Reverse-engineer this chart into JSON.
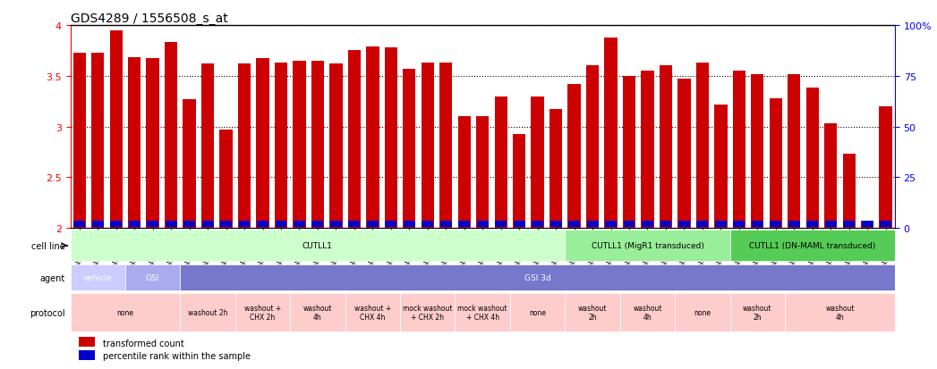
{
  "title": "GDS4289 / 1556508_s_at",
  "samples": [
    "GSM731500",
    "GSM731501",
    "GSM731502",
    "GSM731503",
    "GSM731504",
    "GSM731505",
    "GSM731518",
    "GSM731519",
    "GSM731520",
    "GSM731506",
    "GSM731507",
    "GSM731508",
    "GSM731509",
    "GSM731510",
    "GSM731511",
    "GSM731512",
    "GSM731513",
    "GSM731514",
    "GSM731515",
    "GSM731516",
    "GSM731517",
    "GSM731521",
    "GSM731522",
    "GSM731523",
    "GSM731524",
    "GSM731525",
    "GSM731526",
    "GSM731527",
    "GSM731528",
    "GSM731529",
    "GSM731531",
    "GSM731532",
    "GSM731533",
    "GSM731534",
    "GSM731535",
    "GSM731536",
    "GSM731537",
    "GSM731538",
    "GSM731539",
    "GSM731540",
    "GSM731541",
    "GSM731542",
    "GSM731543",
    "GSM731544",
    "GSM731545"
  ],
  "red_values": [
    3.73,
    3.73,
    3.95,
    3.68,
    3.67,
    3.83,
    3.27,
    3.62,
    2.97,
    3.62,
    3.67,
    3.63,
    3.65,
    3.65,
    3.62,
    3.75,
    3.79,
    3.78,
    3.57,
    3.63,
    3.63,
    3.1,
    3.1,
    3.3,
    2.93,
    3.3,
    3.17,
    3.42,
    3.6,
    3.88,
    3.5,
    3.55,
    3.6,
    3.47,
    3.63,
    3.22,
    3.55,
    3.52,
    3.28,
    3.52,
    3.38,
    3.03,
    2.73,
    2.07,
    3.2
  ],
  "blue_values": [
    0.1,
    0.09,
    0.06,
    0.16,
    0.08,
    0.14,
    0.08,
    0.08,
    0.1,
    0.08,
    0.08,
    0.14,
    0.09,
    0.08,
    0.1,
    0.1,
    0.12,
    0.12,
    0.14,
    0.1,
    0.14,
    0.18,
    0.14,
    0.16,
    0.1,
    0.08,
    0.14,
    0.1,
    0.22,
    0.12,
    0.1,
    0.1,
    0.1,
    0.08,
    0.12,
    0.1,
    0.1,
    0.12,
    0.14,
    0.1,
    0.15,
    0.08,
    0.08,
    0.18,
    0.1
  ],
  "ymin": 2.0,
  "ymax": 4.0,
  "bar_color": "#cc0000",
  "blue_color": "#0000cc",
  "cell_line_regions": [
    {
      "label": "CUTLL1",
      "start": 0,
      "end": 27,
      "color": "#ccffcc"
    },
    {
      "label": "CUTLL1 (MigR1 transduced)",
      "start": 27,
      "end": 36,
      "color": "#99ee99"
    },
    {
      "label": "CUTLL1 (DN-MAML transduced)",
      "start": 36,
      "end": 45,
      "color": "#55cc55"
    }
  ],
  "agent_regions": [
    {
      "label": "vehicle",
      "start": 0,
      "end": 3,
      "color": "#ccccff"
    },
    {
      "label": "GSI",
      "start": 3,
      "end": 6,
      "color": "#aaaaee"
    },
    {
      "label": "GSI 3d",
      "start": 6,
      "end": 45,
      "color": "#7777cc"
    }
  ],
  "protocol_regions": [
    {
      "label": "none",
      "start": 0,
      "end": 6,
      "color": "#ffcccc"
    },
    {
      "label": "washout 2h",
      "start": 6,
      "end": 9,
      "color": "#ffcccc"
    },
    {
      "label": "washout +\nCHX 2h",
      "start": 9,
      "end": 12,
      "color": "#ffcccc"
    },
    {
      "label": "washout\n4h",
      "start": 12,
      "end": 15,
      "color": "#ffcccc"
    },
    {
      "label": "washout +\nCHX 4h",
      "start": 15,
      "end": 18,
      "color": "#ffcccc"
    },
    {
      "label": "mock washout\n+ CHX 2h",
      "start": 18,
      "end": 21,
      "color": "#ffcccc"
    },
    {
      "label": "mock washout\n+ CHX 4h",
      "start": 21,
      "end": 24,
      "color": "#ffcccc"
    },
    {
      "label": "none",
      "start": 24,
      "end": 27,
      "color": "#ffcccc"
    },
    {
      "label": "washout\n2h",
      "start": 27,
      "end": 30,
      "color": "#ffcccc"
    },
    {
      "label": "washout\n4h",
      "start": 30,
      "end": 33,
      "color": "#ffcccc"
    },
    {
      "label": "none",
      "start": 33,
      "end": 36,
      "color": "#ffcccc"
    },
    {
      "label": "washout\n2h",
      "start": 36,
      "end": 39,
      "color": "#ffcccc"
    },
    {
      "label": "washout\n4h",
      "start": 39,
      "end": 45,
      "color": "#ffcccc"
    }
  ]
}
